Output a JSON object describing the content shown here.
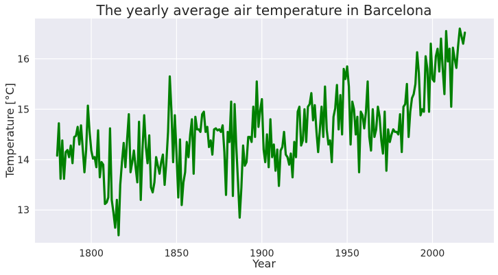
{
  "chart_data": {
    "type": "line",
    "title": "The yearly average air temperature in Barcelona",
    "xlabel": "Year",
    "ylabel": "Temperature [°C]",
    "xlim": [
      1767,
      2036
    ],
    "ylim": [
      12.35,
      16.8
    ],
    "xticks": [
      1800,
      1850,
      1900,
      1950,
      2000
    ],
    "yticks": [
      13,
      14,
      15,
      16
    ],
    "grid": true,
    "series": [
      {
        "name": "Temperature",
        "color": "#008000",
        "x": [
          1780,
          1781,
          1782,
          1783,
          1784,
          1785,
          1786,
          1787,
          1788,
          1789,
          1790,
          1791,
          1792,
          1793,
          1794,
          1795,
          1796,
          1797,
          1798,
          1799,
          1800,
          1801,
          1802,
          1803,
          1804,
          1805,
          1806,
          1807,
          1808,
          1809,
          1810,
          1811,
          1812,
          1813,
          1814,
          1815,
          1816,
          1817,
          1818,
          1819,
          1820,
          1821,
          1822,
          1823,
          1824,
          1825,
          1826,
          1827,
          1828,
          1829,
          1830,
          1831,
          1832,
          1833,
          1834,
          1835,
          1836,
          1837,
          1838,
          1839,
          1840,
          1841,
          1842,
          1843,
          1844,
          1845,
          1846,
          1847,
          1848,
          1849,
          1850,
          1851,
          1852,
          1853,
          1854,
          1855,
          1856,
          1857,
          1858,
          1859,
          1860,
          1861,
          1862,
          1863,
          1864,
          1865,
          1866,
          1867,
          1868,
          1869,
          1870,
          1871,
          1872,
          1873,
          1874,
          1875,
          1876,
          1877,
          1878,
          1879,
          1880,
          1881,
          1882,
          1883,
          1884,
          1885,
          1886,
          1887,
          1888,
          1889,
          1890,
          1891,
          1892,
          1893,
          1894,
          1895,
          1896,
          1897,
          1898,
          1899,
          1900,
          1901,
          1902,
          1903,
          1904,
          1905,
          1906,
          1907,
          1908,
          1909,
          1910,
          1911,
          1912,
          1913,
          1914,
          1915,
          1916,
          1917,
          1918,
          1919,
          1920,
          1921,
          1922,
          1923,
          1924,
          1925,
          1926,
          1927,
          1928,
          1929,
          1930,
          1931,
          1932,
          1933,
          1934,
          1935,
          1936,
          1937,
          1938,
          1939,
          1940,
          1941,
          1942,
          1943,
          1944,
          1945,
          1946,
          1947,
          1948,
          1949,
          1950,
          1951,
          1952,
          1953,
          1954,
          1955,
          1956,
          1957,
          1958,
          1959,
          1960,
          1961,
          1962,
          1963,
          1964,
          1965,
          1966,
          1967,
          1968,
          1969,
          1970,
          1971,
          1972,
          1973,
          1974,
          1975,
          1976,
          1977,
          1978,
          1979,
          1980,
          1981,
          1982,
          1983,
          1984,
          1985,
          1986,
          1987,
          1988,
          1989,
          1990,
          1991,
          1992,
          1993,
          1994,
          1995,
          1996,
          1997,
          1998,
          1999,
          2000,
          2001,
          2002,
          2003,
          2004,
          2005,
          2006,
          2007,
          2008,
          2009,
          2010,
          2011,
          2012,
          2013,
          2014,
          2015,
          2016,
          2017,
          2018,
          2019
        ],
        "y": [
          14.08,
          14.72,
          13.62,
          14.38,
          13.62,
          14.15,
          14.19,
          14.05,
          14.28,
          13.93,
          14.45,
          14.47,
          14.65,
          14.3,
          14.68,
          14.22,
          13.75,
          14.2,
          15.07,
          14.55,
          14.18,
          14.02,
          14.05,
          13.85,
          14.58,
          13.65,
          13.95,
          13.9,
          13.12,
          13.15,
          13.25,
          14.62,
          13.2,
          12.95,
          12.65,
          13.2,
          12.5,
          13.5,
          13.95,
          14.33,
          13.85,
          14.4,
          14.9,
          13.75,
          13.95,
          14.18,
          13.85,
          13.55,
          14.75,
          13.2,
          14.2,
          14.88,
          14.25,
          13.93,
          14.48,
          13.45,
          13.35,
          13.55,
          14.05,
          13.88,
          13.72,
          13.95,
          14.1,
          13.5,
          13.95,
          14.55,
          15.65,
          14.95,
          13.95,
          14.88,
          14.1,
          13.25,
          14.4,
          13.1,
          13.55,
          13.75,
          14.35,
          14.05,
          14.5,
          14.8,
          13.72,
          14.85,
          14.6,
          14.6,
          14.55,
          14.9,
          14.95,
          14.55,
          14.65,
          14.25,
          14.38,
          14.1,
          14.6,
          14.62,
          14.58,
          14.6,
          14.55,
          14.68,
          14.15,
          13.3,
          14.55,
          14.35,
          15.15,
          13.28,
          15.1,
          14.25,
          13.55,
          12.85,
          13.45,
          14.28,
          13.88,
          13.95,
          14.45,
          14.45,
          14.35,
          15.05,
          14.45,
          15.55,
          14.65,
          14.98,
          15.2,
          14.2,
          13.95,
          14.5,
          13.85,
          14.8,
          14.05,
          14.3,
          13.78,
          14.2,
          13.48,
          14.18,
          14.25,
          14.55,
          14.1,
          14.05,
          13.9,
          14.12,
          13.65,
          14.35,
          14.05,
          14.95,
          15.05,
          14.28,
          14.38,
          15.0,
          14.35,
          15.05,
          15.1,
          15.32,
          14.78,
          15.08,
          14.55,
          14.15,
          14.6,
          15.05,
          14.45,
          15.45,
          14.6,
          14.3,
          14.38,
          13.95,
          14.85,
          15.02,
          15.48,
          14.6,
          15.28,
          14.5,
          15.8,
          15.6,
          15.85,
          15.45,
          14.3,
          15.15,
          15.0,
          14.5,
          14.85,
          13.75,
          14.95,
          14.88,
          14.62,
          14.95,
          15.55,
          14.45,
          14.18,
          15.0,
          14.45,
          14.6,
          15.05,
          14.85,
          14.38,
          14.12,
          14.95,
          13.78,
          14.6,
          14.35,
          14.5,
          14.6,
          14.55,
          14.55,
          14.5,
          14.9,
          14.15,
          15.05,
          15.1,
          15.5,
          14.45,
          14.95,
          15.22,
          15.3,
          15.5,
          16.13,
          15.72,
          14.88,
          15.0,
          14.95,
          16.05,
          15.8,
          14.95,
          16.3,
          15.6,
          15.55,
          16.05,
          16.2,
          15.75,
          16.4,
          15.8,
          15.3,
          16.55,
          15.95,
          16.2,
          15.05,
          16.22,
          16.0,
          15.82,
          16.25,
          16.6,
          16.45,
          16.3,
          16.52
        ]
      }
    ]
  }
}
